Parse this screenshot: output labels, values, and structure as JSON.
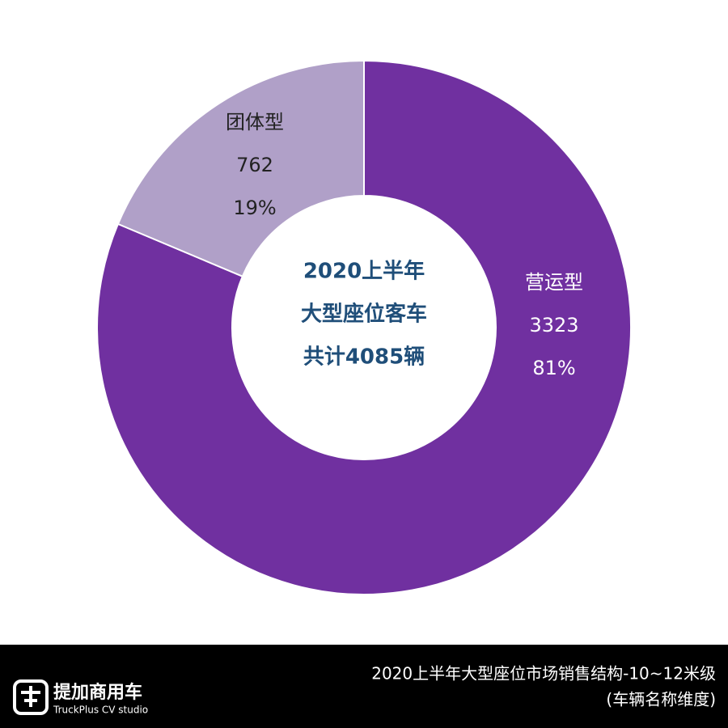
{
  "chart_data": {
    "type": "donut",
    "categories": [
      "营运型",
      "团体型"
    ],
    "values": [
      3323,
      762
    ],
    "percent_labels": [
      "81%",
      "19%"
    ],
    "colors": [
      "#7030a0",
      "#b0a0c8"
    ],
    "center_text": [
      "2020上半年",
      "大型座位客车",
      "共计4085辆"
    ]
  },
  "footer": {
    "caption": [
      "2020上半年大型座位市场销售结构-10~12米级",
      "(车辆名称维度)"
    ],
    "logo_name": "提加商用车",
    "logo_sub": "TruckPlus CV studio"
  }
}
